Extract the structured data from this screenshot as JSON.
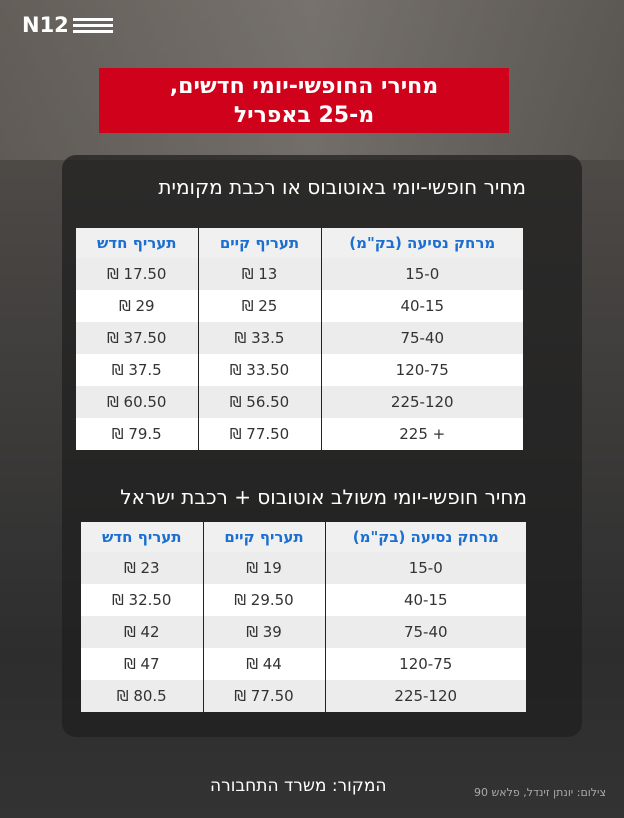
{
  "logo": "N12",
  "title": {
    "line1": "מחירי החופשי-יומי חדשים,",
    "line2": "מ-25 באפריל"
  },
  "colors": {
    "title_bg": "#d0021b",
    "header_text": "#1a6fd0"
  },
  "table1": {
    "heading": "מחיר חופשי-יומי באוטובוס או רכבת מקומית",
    "headers": [
      "מרחק נסיעה (בק\"מ)",
      "תעריף קיים",
      "תעריף חדש"
    ],
    "rows": [
      [
        "15-0",
        "13 ₪",
        "17.50 ₪"
      ],
      [
        "40-15",
        "25 ₪",
        "29 ₪"
      ],
      [
        "75-40",
        "33.5 ₪",
        "37.50 ₪"
      ],
      [
        "120-75",
        "33.50 ₪",
        "37.5 ₪"
      ],
      [
        "225-120",
        "56.50 ₪",
        "60.50 ₪"
      ],
      [
        "+ 225",
        "77.50 ₪",
        "79.5 ₪"
      ]
    ]
  },
  "table2": {
    "heading": "מחיר חופשי-יומי משולב אוטובוס + רכבת ישראל",
    "headers": [
      "מרחק נסיעה (בק\"מ)",
      "תעריף קיים",
      "תעריף חדש"
    ],
    "rows": [
      [
        "15-0",
        "19 ₪",
        "23 ₪"
      ],
      [
        "40-15",
        "29.50 ₪",
        "32.50 ₪"
      ],
      [
        "75-40",
        "39 ₪",
        "42 ₪"
      ],
      [
        "120-75",
        "44 ₪",
        "47 ₪"
      ],
      [
        "225-120",
        "77.50 ₪",
        "80.5 ₪"
      ]
    ]
  },
  "source": "המקור: משרד התחבורה",
  "credit": "צילום: יונתן זינדל, פלאש 90"
}
